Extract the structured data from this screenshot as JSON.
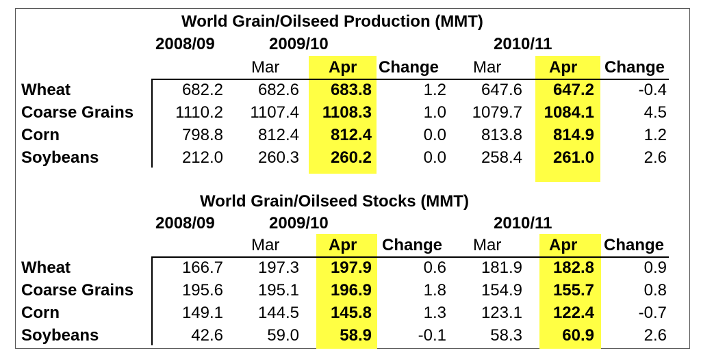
{
  "colors": {
    "highlight": "#ffff44",
    "text": "#000000",
    "border": "#555555"
  },
  "tables": [
    {
      "title": "World Grain/Oilseed Production (MMT)",
      "years": [
        "2008/09",
        "2009/10",
        "2010/11"
      ],
      "subheaders": [
        "Mar",
        "Apr",
        "Change",
        "Mar",
        "Apr",
        "Change"
      ],
      "rows": [
        {
          "label": "Wheat",
          "values": [
            "682.2",
            "682.6",
            "683.8",
            "1.2",
            "647.6",
            "647.2",
            "-0.4"
          ]
        },
        {
          "label": "Coarse Grains",
          "values": [
            "1110.2",
            "1107.4",
            "1108.3",
            "1.0",
            "1079.7",
            "1084.1",
            "4.5"
          ]
        },
        {
          "label": "Corn",
          "values": [
            "798.8",
            "812.4",
            "812.4",
            "0.0",
            "813.8",
            "814.9",
            "1.2"
          ]
        },
        {
          "label": "Soybeans",
          "values": [
            "212.0",
            "260.3",
            "260.2",
            "0.0",
            "258.4",
            "261.0",
            "2.6"
          ]
        }
      ]
    },
    {
      "title": "World Grain/Oilseed Stocks (MMT)",
      "years": [
        "2008/09",
        "2009/10",
        "2010/11"
      ],
      "subheaders": [
        "Mar",
        "Apr",
        "Change",
        "Mar",
        "Apr",
        "Change"
      ],
      "rows": [
        {
          "label": "Wheat",
          "values": [
            "166.7",
            "197.3",
            "197.9",
            "0.6",
            "181.9",
            "182.8",
            "0.9"
          ]
        },
        {
          "label": "Coarse Grains",
          "values": [
            "195.6",
            "195.1",
            "196.9",
            "1.8",
            "154.9",
            "155.7",
            "0.8"
          ]
        },
        {
          "label": "Corn",
          "values": [
            "149.1",
            "144.5",
            "145.8",
            "1.3",
            "123.1",
            "122.4",
            "-0.7"
          ]
        },
        {
          "label": "Soybeans",
          "values": [
            "42.6",
            "59.0",
            "58.9",
            "-0.1",
            "58.3",
            "60.9",
            "2.6"
          ]
        }
      ]
    }
  ]
}
